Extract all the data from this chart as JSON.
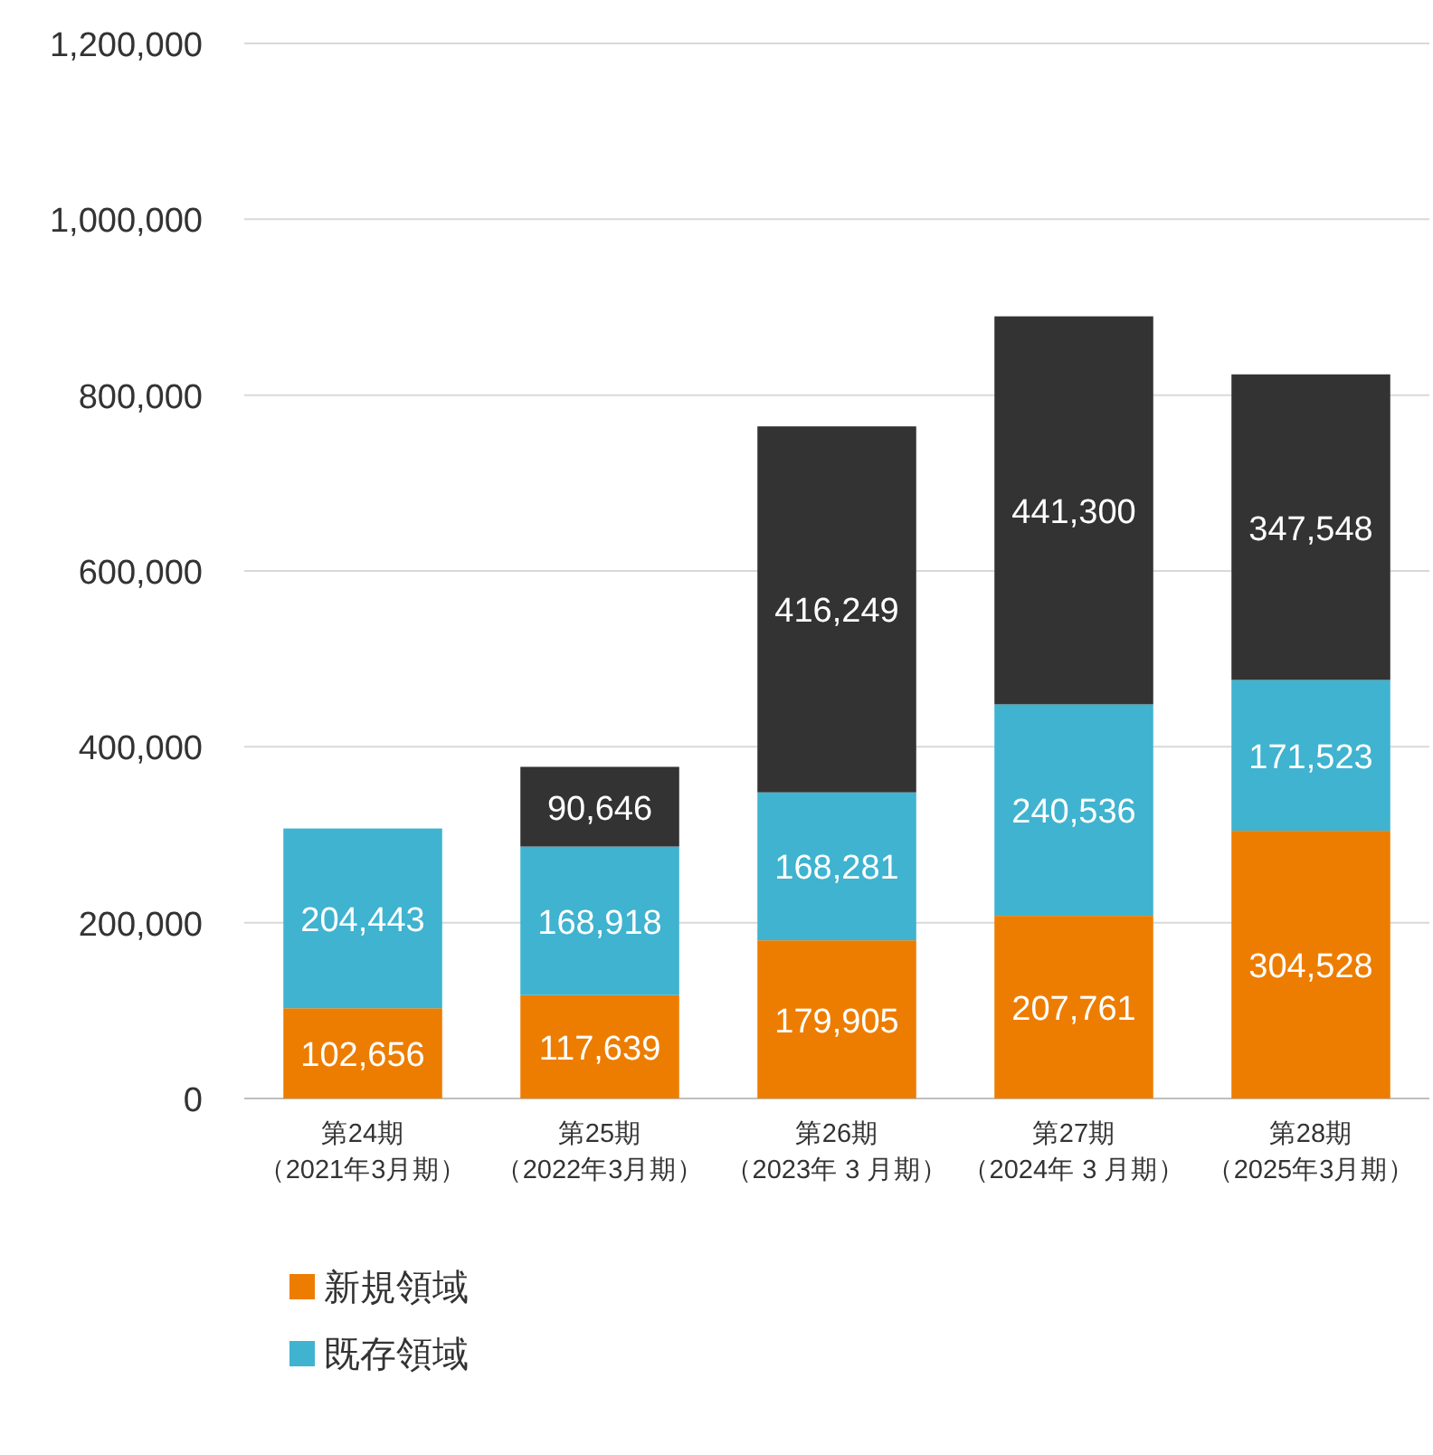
{
  "chart_data": {
    "type": "bar",
    "stacked": true,
    "categories": [
      "第24期（2021年3月期）",
      "第25期（2022年3月期）",
      "第26期（2023年 3 月期）",
      "第27期（2024年 3 月期）",
      "第28期（2025年3月期）"
    ],
    "series": [
      {
        "name": "新規領域",
        "color": "#ed7d00",
        "values": [
          102656,
          117639,
          179905,
          207761,
          304528
        ],
        "value_labels": [
          "102,656",
          "117,639",
          "179,905",
          "207,761",
          "304,528"
        ]
      },
      {
        "name": "既存領域",
        "color": "#3fb3cf",
        "values": [
          204443,
          168918,
          168281,
          240536,
          171523
        ],
        "value_labels": [
          "204,443",
          "168,918",
          "168,281",
          "240,536",
          "171,523"
        ]
      },
      {
        "color": "#333333",
        "values": [
          null,
          90646,
          416249,
          441300,
          347548
        ],
        "value_labels": [
          null,
          "90,646",
          "416,249",
          "441,300",
          "347,548"
        ]
      }
    ],
    "ylim": [
      0,
      1200000
    ],
    "yticks": [
      {
        "value": 0,
        "label": "0"
      },
      {
        "value": 200000,
        "label": "200,000"
      },
      {
        "value": 400000,
        "label": "400,000"
      },
      {
        "value": 600000,
        "label": "600,000"
      },
      {
        "value": 800000,
        "label": "800,000"
      },
      {
        "value": 1000000,
        "label": "1,000,000"
      },
      {
        "value": 1200000,
        "label": "1,200,000"
      }
    ],
    "grid": "y",
    "legend": "bottom"
  }
}
